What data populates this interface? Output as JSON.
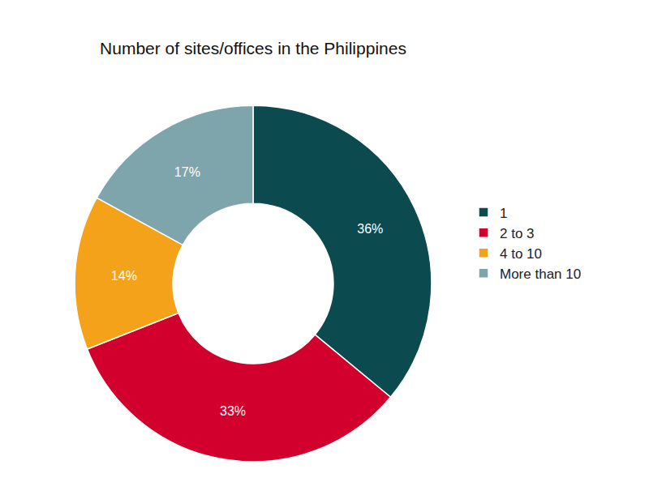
{
  "chart_data": {
    "type": "pie",
    "title": "Number of sites/offices in the Philippines",
    "categories": [
      "1",
      "2 to 3",
      "4 to 10",
      "More than 10"
    ],
    "values": [
      36,
      33,
      14,
      17
    ],
    "value_labels": [
      "36%",
      "33%",
      "14%",
      "17%"
    ],
    "colors": [
      "#0b4a4f",
      "#d1002c",
      "#f5a21b",
      "#7fa5ac"
    ],
    "data_labels": true,
    "legend": "right"
  }
}
